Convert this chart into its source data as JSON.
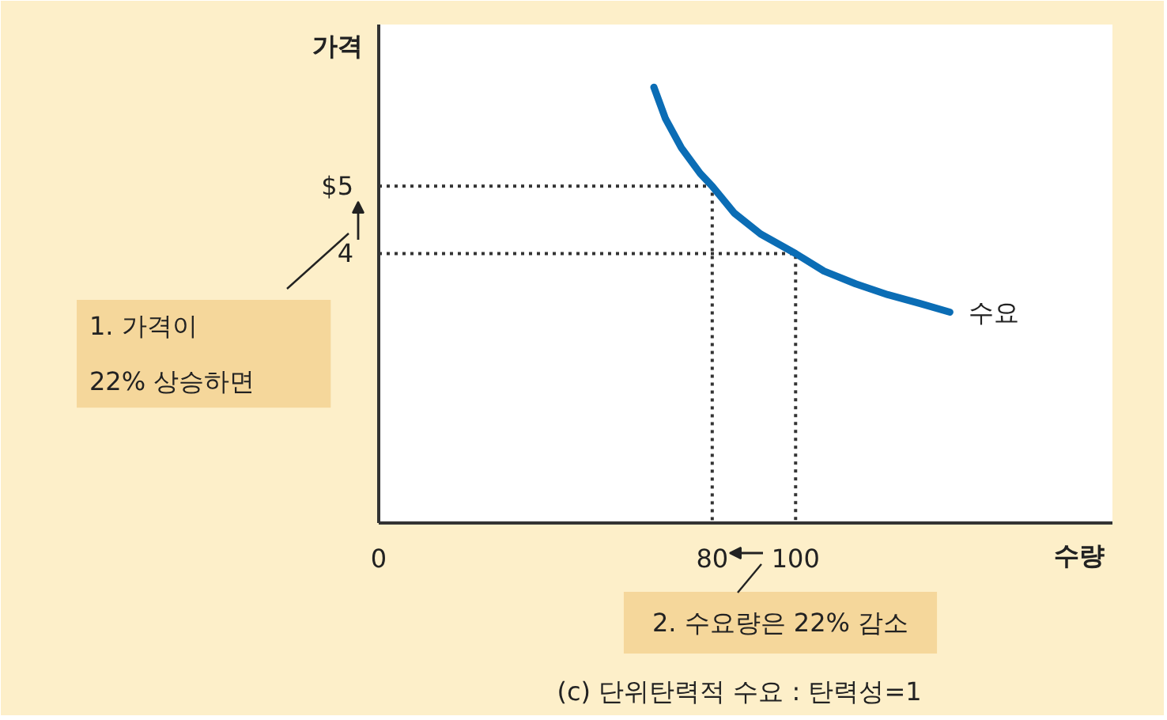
{
  "chart_data": {
    "type": "line",
    "title": "(c) 단위탄력적 수요 : 탄력성=1",
    "xlabel": "수량",
    "ylabel": "가격",
    "xlim": [
      0,
      176
    ],
    "ylim": [
      0,
      7.4
    ],
    "xticks": [
      0,
      80,
      100
    ],
    "yticks": [
      4,
      {
        "value": 5,
        "label": "$5"
      }
    ],
    "line_style": "solid",
    "series": [
      {
        "name": "수요",
        "color": "#0b6db5",
        "x": [
          66,
          68.8,
          72.6,
          77.1,
          80,
          85.3,
          91.6,
          100,
          106.8,
          114.4,
          122.1,
          129.7,
          137
        ],
        "values": [
          6.47,
          6,
          5.57,
          5.19,
          5,
          4.6,
          4.29,
          4,
          3.74,
          3.55,
          3.39,
          3.26,
          3.13
        ]
      },
      {
        "color": "#333333",
        "x": [
          0,
          80,
          80
        ],
        "values": [
          5,
          5,
          0
        ],
        "line_style": "dotted"
      },
      {
        "color": "#333333",
        "x": [
          0,
          100,
          100
        ],
        "values": [
          4,
          4,
          0
        ],
        "line_style": "dotted"
      }
    ],
    "annotations": [
      "1. 가격이\n22% 상승하면",
      "2. 수요량은 22% 감소"
    ]
  }
}
